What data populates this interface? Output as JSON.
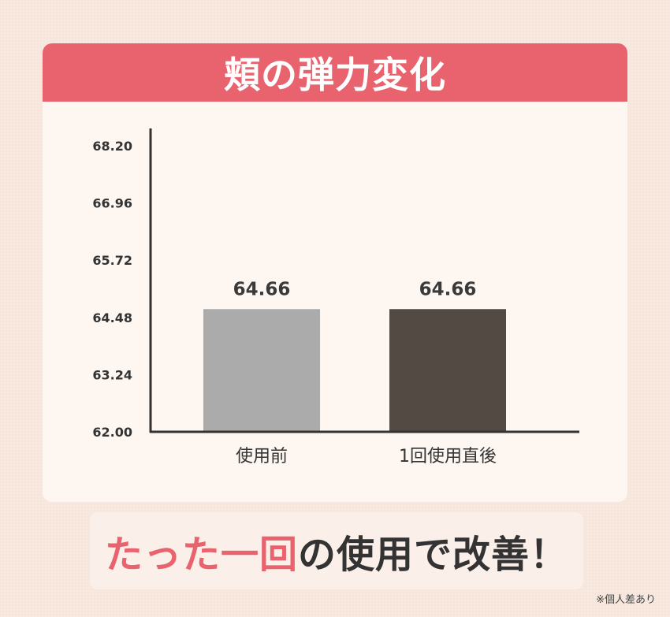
{
  "title": "頬の弾力変化",
  "chart_data": {
    "type": "bar",
    "categories": [
      "使用前",
      "1回使用直後"
    ],
    "values": [
      64.66,
      64.66
    ],
    "value_labels": [
      "64.66",
      "64.66"
    ],
    "colors": [
      "#ababab",
      "#524a43"
    ],
    "ylim": [
      62.0,
      68.2
    ],
    "yticks": [
      "62.00",
      "63.24",
      "64.48",
      "65.72",
      "66.96",
      "68.20"
    ],
    "grid": false
  },
  "banner": {
    "highlight": "たった一回",
    "rest": "の使用で改善！"
  },
  "note": "※個人差あり"
}
